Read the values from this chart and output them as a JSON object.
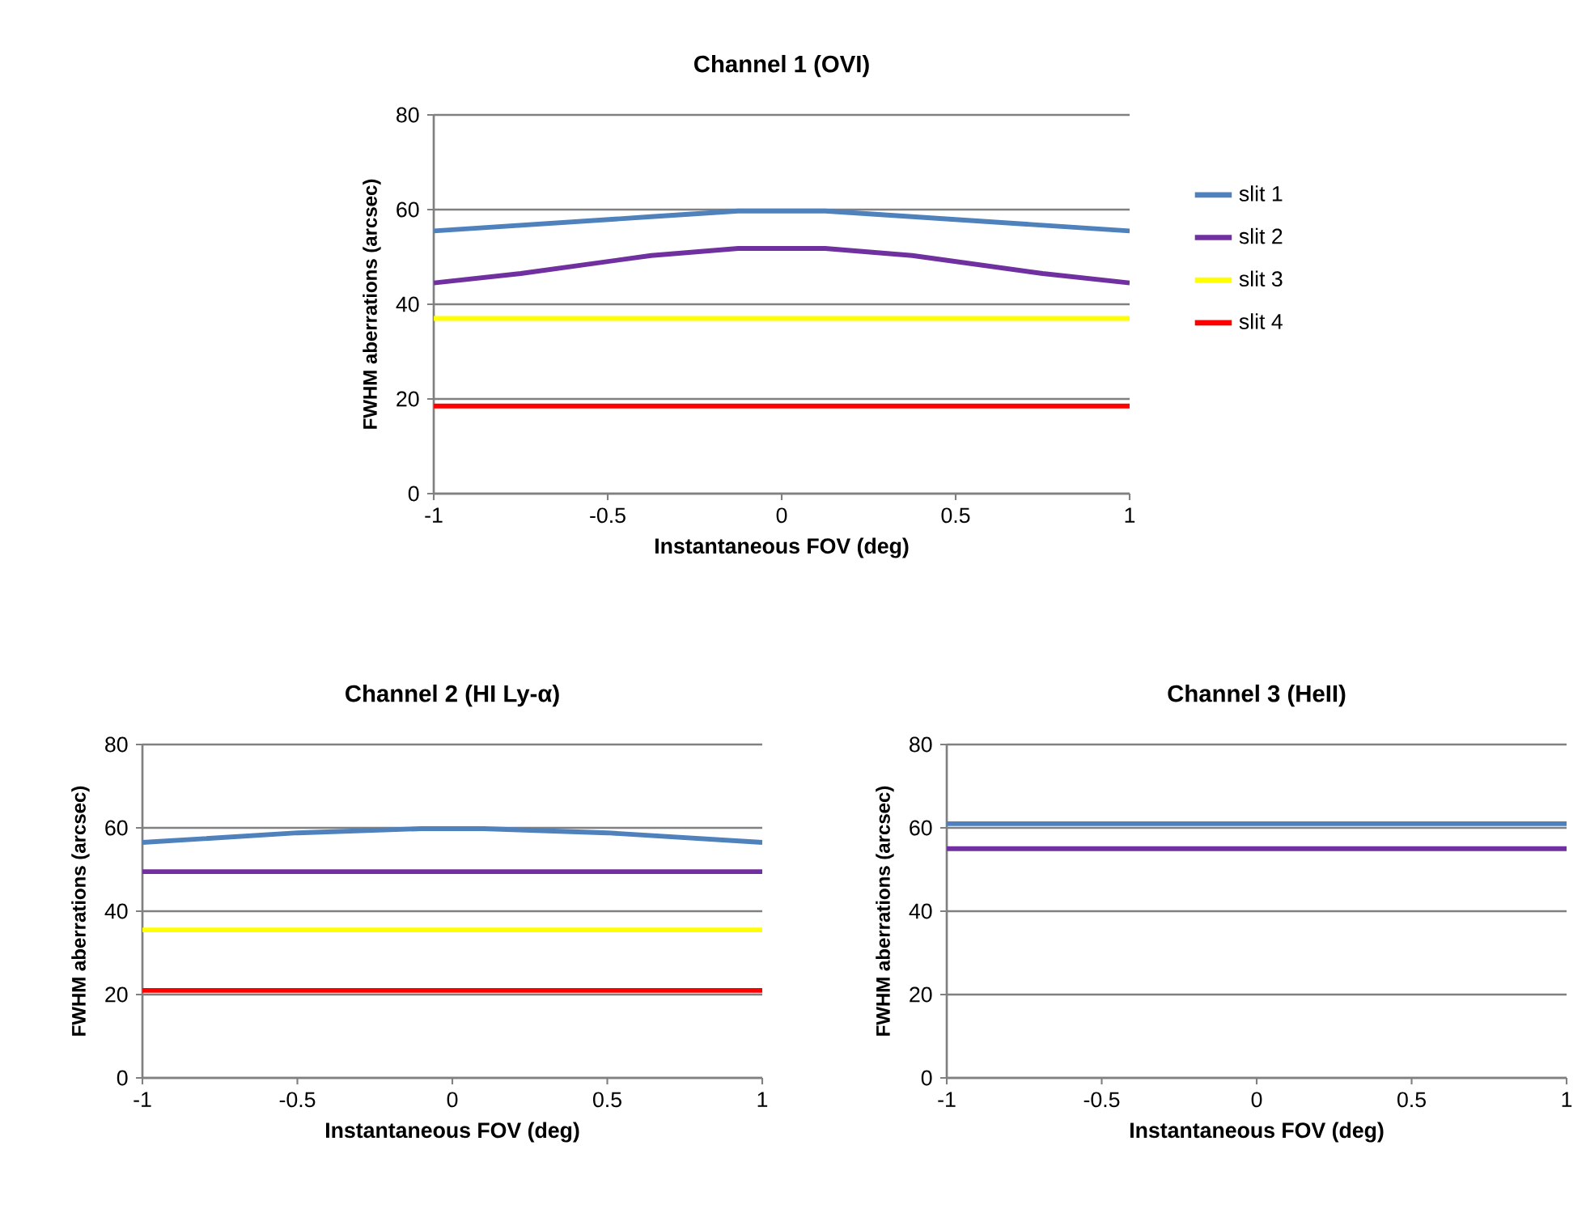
{
  "chart_data": [
    {
      "type": "line",
      "title": "Channel 1 (OVI)",
      "xlabel": "Instantaneous FOV (deg)",
      "ylabel": "FWHM aberrations (arcsec)",
      "xlim": [
        -1,
        1
      ],
      "xticks": [
        -1,
        -0.5,
        0,
        0.5,
        1
      ],
      "ylim": [
        0,
        80
      ],
      "yticks": [
        0,
        20,
        40,
        60,
        80
      ],
      "grid": "y",
      "legend": "right",
      "marker": "none",
      "series": [
        {
          "name": "slit 1",
          "color": "#4f81bd",
          "x": [
            -1,
            -0.375,
            -0.125,
            0.125,
            0.375,
            1
          ],
          "values": [
            55.5,
            58.5,
            59.7,
            59.7,
            58.5,
            55.5
          ]
        },
        {
          "name": "slit 2",
          "color": "#7030a0",
          "x": [
            -1,
            -0.75,
            -0.375,
            -0.125,
            0.125,
            0.375,
            0.75,
            1
          ],
          "values": [
            44.5,
            46.5,
            50.3,
            51.8,
            51.8,
            50.3,
            46.5,
            44.5
          ]
        },
        {
          "name": "slit 3",
          "color": "#ffff00",
          "x": [
            -1,
            0,
            1
          ],
          "values": [
            37,
            37,
            37
          ]
        },
        {
          "name": "slit 4",
          "color": "#ff0000",
          "x": [
            -1,
            0,
            1
          ],
          "values": [
            18.5,
            18.5,
            18.5
          ]
        }
      ]
    },
    {
      "type": "line",
      "title": "Channel 2 (HI Ly-α)",
      "xlabel": "Instantaneous FOV (deg)",
      "ylabel": "FWHM aberrations (arcsec)",
      "xlim": [
        -1,
        1
      ],
      "xticks": [
        -1,
        -0.5,
        0,
        0.5,
        1
      ],
      "ylim": [
        0,
        80
      ],
      "yticks": [
        0,
        20,
        40,
        60,
        80
      ],
      "grid": "y",
      "marker": "none",
      "series": [
        {
          "color": "#4f81bd",
          "x": [
            -1,
            -0.5,
            -0.1,
            0.1,
            0.5,
            1
          ],
          "values": [
            56.5,
            58.8,
            59.8,
            59.8,
            58.8,
            56.5
          ]
        },
        {
          "color": "#7030a0",
          "x": [
            -1,
            0,
            1
          ],
          "values": [
            49.5,
            49.5,
            49.5
          ]
        },
        {
          "color": "#ffff00",
          "x": [
            -1,
            0,
            1
          ],
          "values": [
            35.5,
            35.5,
            35.5
          ]
        },
        {
          "color": "#ff0000",
          "x": [
            -1,
            0,
            1
          ],
          "values": [
            21,
            21,
            21
          ]
        }
      ]
    },
    {
      "type": "line",
      "title": "Channel 3 (HeII)",
      "xlabel": "Instantaneous FOV (deg)",
      "ylabel": "FWHM aberrations (arcsec)",
      "xlim": [
        -1,
        1
      ],
      "xticks": [
        -1,
        -0.5,
        0,
        0.5,
        1
      ],
      "ylim": [
        0,
        80
      ],
      "yticks": [
        0,
        20,
        40,
        60,
        80
      ],
      "grid": "y",
      "marker": "none",
      "series": [
        {
          "color": "#4f81bd",
          "x": [
            -1,
            0,
            1
          ],
          "values": [
            61,
            61,
            61
          ]
        },
        {
          "color": "#7030a0",
          "x": [
            -1,
            0,
            1
          ],
          "values": [
            55,
            55,
            55
          ]
        }
      ]
    }
  ]
}
